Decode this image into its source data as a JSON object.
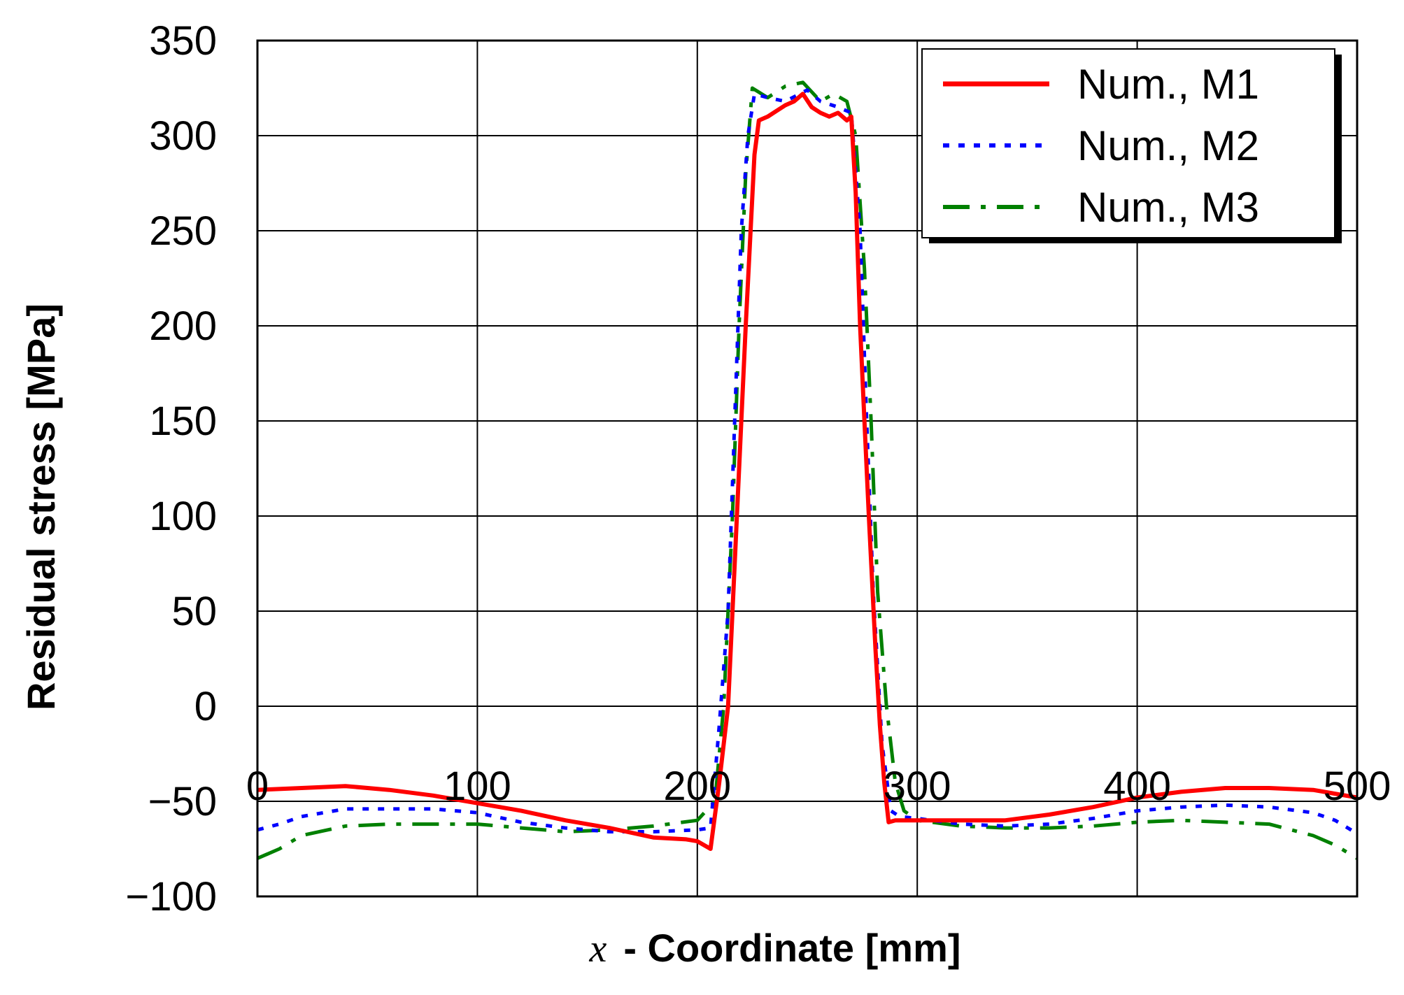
{
  "chart_data": {
    "type": "line",
    "title": "",
    "xlabel": "- Coordinate [mm]",
    "xlabel_var": "x",
    "ylabel": "Residual stress [MPa]",
    "xlim": [
      0,
      500
    ],
    "ylim": [
      -100,
      350
    ],
    "x_ticks": [
      0,
      100,
      200,
      300,
      400,
      500
    ],
    "y_ticks": [
      -100,
      -50,
      0,
      50,
      100,
      150,
      200,
      250,
      300,
      350
    ],
    "x_tick_labels": [
      "0",
      "100",
      "200",
      "300",
      "400",
      "500"
    ],
    "y_tick_labels": [
      "−100",
      "−50",
      "0",
      "50",
      "100",
      "150",
      "200",
      "250",
      "300",
      "350"
    ],
    "grid": true,
    "legend_position": "top-right",
    "series": [
      {
        "name": "Num., M1",
        "color": "#ff0000",
        "style": "solid",
        "points": [
          [
            0,
            -44
          ],
          [
            20,
            -43
          ],
          [
            40,
            -42
          ],
          [
            60,
            -44
          ],
          [
            80,
            -47
          ],
          [
            100,
            -51
          ],
          [
            120,
            -55
          ],
          [
            140,
            -60
          ],
          [
            160,
            -64
          ],
          [
            180,
            -69
          ],
          [
            195,
            -70
          ],
          [
            200,
            -71
          ],
          [
            206,
            -75
          ],
          [
            210,
            -40
          ],
          [
            214,
            0
          ],
          [
            218,
            100
          ],
          [
            222,
            200
          ],
          [
            226,
            290
          ],
          [
            228,
            308
          ],
          [
            232,
            310
          ],
          [
            236,
            313
          ],
          [
            240,
            316
          ],
          [
            244,
            318
          ],
          [
            248,
            322
          ],
          [
            252,
            315
          ],
          [
            256,
            312
          ],
          [
            260,
            310
          ],
          [
            264,
            312
          ],
          [
            268,
            308
          ],
          [
            270,
            310
          ],
          [
            272,
            270
          ],
          [
            274,
            200
          ],
          [
            276,
            150
          ],
          [
            278,
            100
          ],
          [
            281,
            30
          ],
          [
            283,
            -10
          ],
          [
            285,
            -40
          ],
          [
            287,
            -61
          ],
          [
            290,
            -60
          ],
          [
            300,
            -60
          ],
          [
            320,
            -60
          ],
          [
            340,
            -60
          ],
          [
            360,
            -57
          ],
          [
            380,
            -53
          ],
          [
            400,
            -48
          ],
          [
            420,
            -45
          ],
          [
            440,
            -43
          ],
          [
            460,
            -43
          ],
          [
            480,
            -44
          ],
          [
            500,
            -48
          ]
        ]
      },
      {
        "name": "Num., M2",
        "color": "#0000ff",
        "style": "dotted",
        "points": [
          [
            0,
            -65
          ],
          [
            10,
            -62
          ],
          [
            20,
            -58
          ],
          [
            40,
            -54
          ],
          [
            60,
            -54
          ],
          [
            80,
            -54
          ],
          [
            100,
            -56
          ],
          [
            120,
            -61
          ],
          [
            140,
            -64
          ],
          [
            160,
            -66
          ],
          [
            180,
            -66
          ],
          [
            200,
            -65
          ],
          [
            206,
            -64
          ],
          [
            210,
            -10
          ],
          [
            214,
            50
          ],
          [
            217,
            150
          ],
          [
            220,
            250
          ],
          [
            223,
            300
          ],
          [
            226,
            322
          ],
          [
            232,
            320
          ],
          [
            240,
            318
          ],
          [
            250,
            324
          ],
          [
            256,
            318
          ],
          [
            264,
            315
          ],
          [
            270,
            312
          ],
          [
            274,
            250
          ],
          [
            277,
            150
          ],
          [
            280,
            60
          ],
          [
            284,
            -20
          ],
          [
            288,
            -55
          ],
          [
            292,
            -58
          ],
          [
            300,
            -59
          ],
          [
            320,
            -62
          ],
          [
            340,
            -63
          ],
          [
            360,
            -62
          ],
          [
            380,
            -59
          ],
          [
            400,
            -55
          ],
          [
            420,
            -53
          ],
          [
            440,
            -52
          ],
          [
            460,
            -53
          ],
          [
            480,
            -56
          ],
          [
            490,
            -60
          ],
          [
            500,
            -67
          ]
        ]
      },
      {
        "name": "Num., M3",
        "color": "#008000",
        "style": "dashdot",
        "points": [
          [
            0,
            -80
          ],
          [
            10,
            -75
          ],
          [
            20,
            -68
          ],
          [
            40,
            -63
          ],
          [
            60,
            -62
          ],
          [
            80,
            -62
          ],
          [
            100,
            -62
          ],
          [
            120,
            -64
          ],
          [
            140,
            -66
          ],
          [
            160,
            -65
          ],
          [
            180,
            -63
          ],
          [
            200,
            -60
          ],
          [
            208,
            -50
          ],
          [
            212,
            0
          ],
          [
            216,
            100
          ],
          [
            219,
            200
          ],
          [
            222,
            280
          ],
          [
            225,
            325
          ],
          [
            232,
            320
          ],
          [
            240,
            326
          ],
          [
            248,
            328
          ],
          [
            256,
            318
          ],
          [
            262,
            322
          ],
          [
            268,
            318
          ],
          [
            272,
            300
          ],
          [
            276,
            230
          ],
          [
            279,
            150
          ],
          [
            282,
            60
          ],
          [
            286,
            0
          ],
          [
            290,
            -40
          ],
          [
            294,
            -55
          ],
          [
            300,
            -60
          ],
          [
            320,
            -63
          ],
          [
            340,
            -64
          ],
          [
            360,
            -64
          ],
          [
            380,
            -63
          ],
          [
            400,
            -61
          ],
          [
            420,
            -60
          ],
          [
            440,
            -61
          ],
          [
            460,
            -62
          ],
          [
            480,
            -68
          ],
          [
            490,
            -73
          ],
          [
            500,
            -80
          ]
        ]
      }
    ]
  }
}
